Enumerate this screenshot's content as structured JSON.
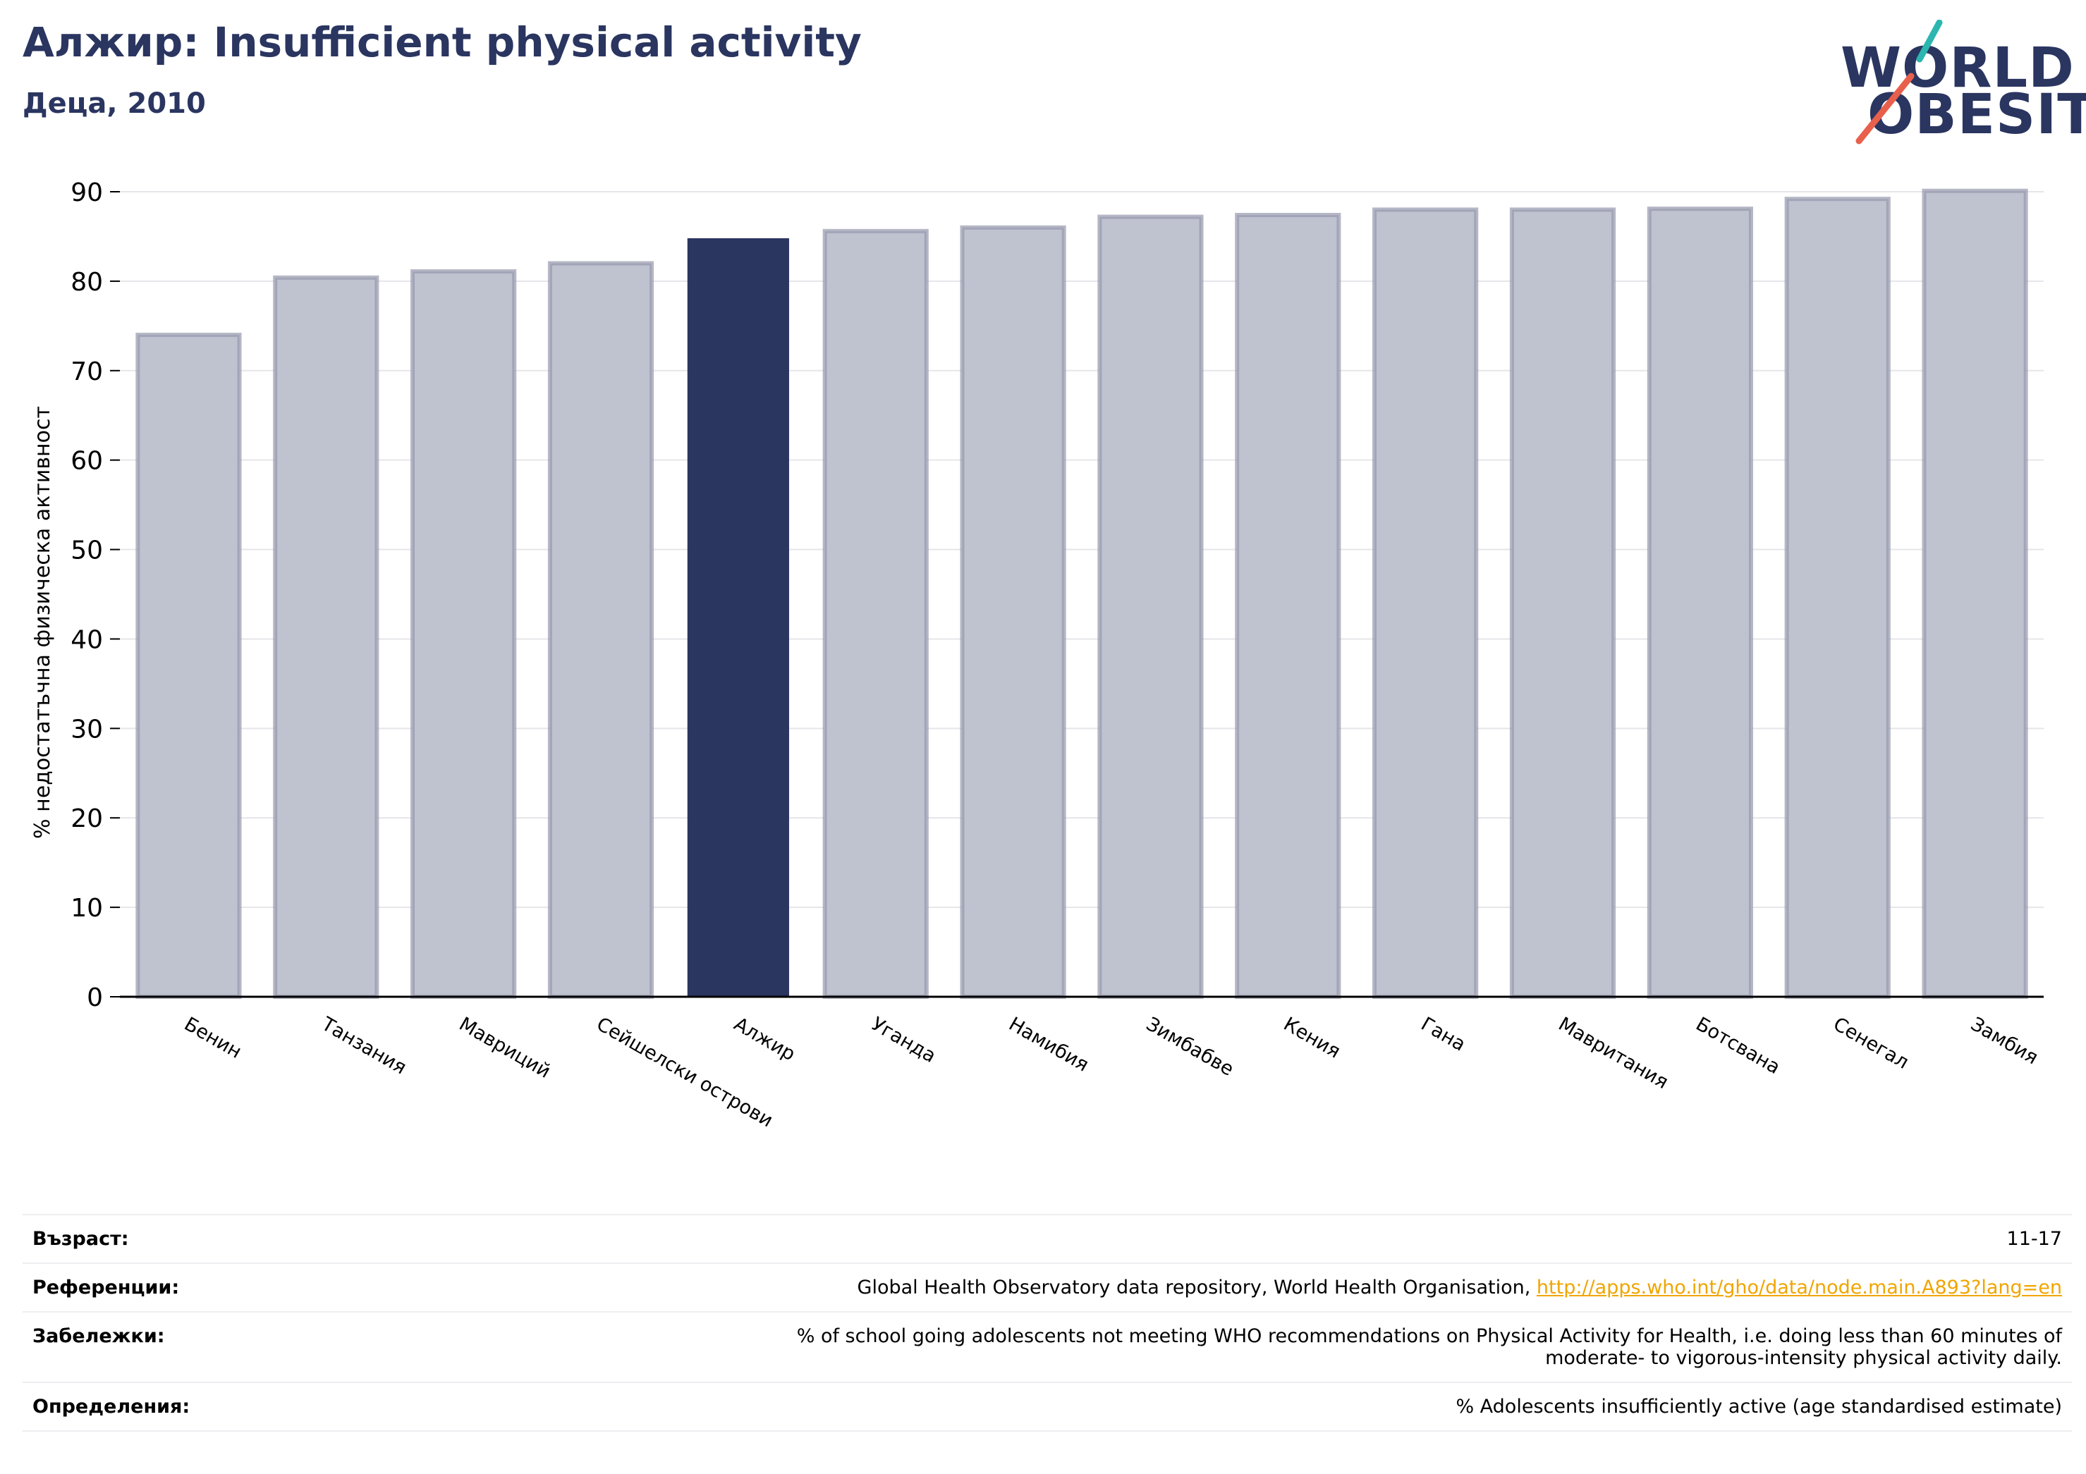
{
  "header": {
    "title": "Алжир: Insufficient physical activity",
    "subtitle": "Деца, 2010"
  },
  "logo": {
    "line1": "WORLD",
    "line2": "OBESITY",
    "accent_teal": "#2bb6b0",
    "accent_red": "#e8604c"
  },
  "colors": {
    "highlight": "#2a3560",
    "bar": "#bfc2cf",
    "bar_border": "#9599ad",
    "grid": "#e6e6ea"
  },
  "chart_data": {
    "type": "bar",
    "categories": [
      "Бенин",
      "Танзания",
      "Мавриций",
      "Сейшелски острови",
      "Алжир",
      "Уганда",
      "Намибия",
      "Зимбабве",
      "Кения",
      "Гана",
      "Мавритания",
      "Ботсвана",
      "Сенегал",
      "Замбия"
    ],
    "values": [
      74.0,
      80.4,
      81.1,
      82.0,
      84.8,
      85.6,
      86.0,
      87.2,
      87.4,
      88.0,
      88.0,
      88.1,
      89.2,
      90.1
    ],
    "highlight": "Алжир",
    "ylabel": "% недостатъчна физическа активност",
    "ylim": [
      0,
      90
    ],
    "yticks": [
      0,
      10,
      20,
      30,
      40,
      50,
      60,
      70,
      80,
      90
    ],
    "grid": true
  },
  "meta": {
    "age_label": "Възраст:",
    "age_value": "11-17",
    "refs_label": "Референции:",
    "refs_text": "Global Health Observatory data repository, World Health Organisation, ",
    "refs_link": "http://apps.who.int/gho/data/node.main.A893?lang=en",
    "notes_label": "Забележки:",
    "notes_line1": "% of school going adolescents not meeting WHO recommendations on Physical Activity for Health, i.e. doing less than 60 minutes of",
    "notes_line2": "moderate- to vigorous-intensity physical activity daily.",
    "defs_label": "Определения:",
    "defs_value": "% Adolescents insufficiently active (age standardised estimate)"
  }
}
